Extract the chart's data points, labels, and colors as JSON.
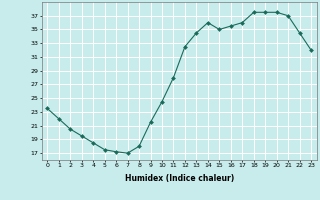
{
  "x": [
    0,
    1,
    2,
    3,
    4,
    5,
    6,
    7,
    8,
    9,
    10,
    11,
    12,
    13,
    14,
    15,
    16,
    17,
    18,
    19,
    20,
    21,
    22,
    23
  ],
  "y": [
    23.5,
    22,
    20.5,
    19.5,
    18.5,
    17.5,
    17.2,
    17.0,
    18.0,
    21.5,
    24.5,
    28.0,
    32.5,
    34.5,
    36.0,
    35.0,
    35.5,
    36.0,
    37.5,
    37.5,
    37.5,
    37.0,
    34.5,
    32.0
  ],
  "xlabel": "Humidex (Indice chaleur)",
  "line_color": "#1a6b5a",
  "marker_color": "#1a6b5a",
  "bg_color": "#c8ecec",
  "grid_color": "#ffffff",
  "text_color": "#000000",
  "ylim_min": 16,
  "ylim_max": 39,
  "yticks": [
    17,
    19,
    21,
    23,
    25,
    27,
    29,
    31,
    33,
    35,
    37
  ],
  "xticks": [
    0,
    1,
    2,
    3,
    4,
    5,
    6,
    7,
    8,
    9,
    10,
    11,
    12,
    13,
    14,
    15,
    16,
    17,
    18,
    19,
    20,
    21,
    22,
    23
  ]
}
